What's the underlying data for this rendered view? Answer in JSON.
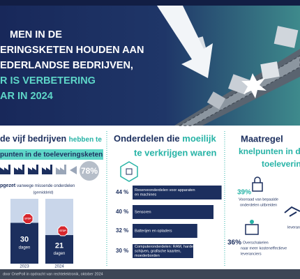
{
  "header": {
    "title_lines": [
      "MEN IN DE",
      "ERINGSKETEN HOUDEN AAN",
      "EDERLANDSE BEDRIJVEN,"
    ],
    "highlight_lines": [
      "R IS VERBETERING",
      "AR IN 2024"
    ]
  },
  "left": {
    "heading": [
      "de vijf bedrijven",
      "hebben te"
    ],
    "heading2": "punten in de toeleveringsketen",
    "badge": "78%",
    "caption": [
      "pgezet",
      "vanwege missende onderdelen"
    ],
    "caption_sub": "(gemiddeld)",
    "bars": [
      {
        "year": "2023",
        "days": 30,
        "unit": "dagen",
        "sign": "STOP"
      },
      {
        "year": "2024",
        "days": 21,
        "unit": "dagen",
        "sign": "STOP"
      }
    ]
  },
  "middle": {
    "heading": [
      "Onderdelen die",
      "moeilijk"
    ],
    "heading2": "te verkrijgen waren",
    "items": [
      {
        "value": 44,
        "label": "44 %",
        "lines": [
          "Reserveonderdelen voor apparaten",
          "en machines"
        ]
      },
      {
        "value": 40,
        "label": "40 %",
        "lines": [
          "Sensoren"
        ]
      },
      {
        "value": 32,
        "label": "32 %",
        "lines": [
          "Batterijen en opladers"
        ]
      },
      {
        "value": 30,
        "label": "30 %",
        "lines": [
          "Computeronderdelen: RAM, harde",
          "schijven, grafische kaarten,",
          "moederborden"
        ]
      }
    ]
  },
  "right": {
    "heading": "Maatregel",
    "heading2": [
      "knelpunten in de",
      "toelevering"
    ],
    "items": [
      {
        "label": "39%",
        "lines": [
          "Voorraad van bepaalde",
          "onderdelen uitbreiden"
        ]
      },
      {
        "label": "36%",
        "lines": [
          "Overschakelen",
          "naar meer kosteneffectieve",
          "leveranciers"
        ]
      }
    ],
    "partial": "leveranc"
  },
  "footer": "door OnePoll in opdracht van rechtelektronik, oktober 2024"
}
